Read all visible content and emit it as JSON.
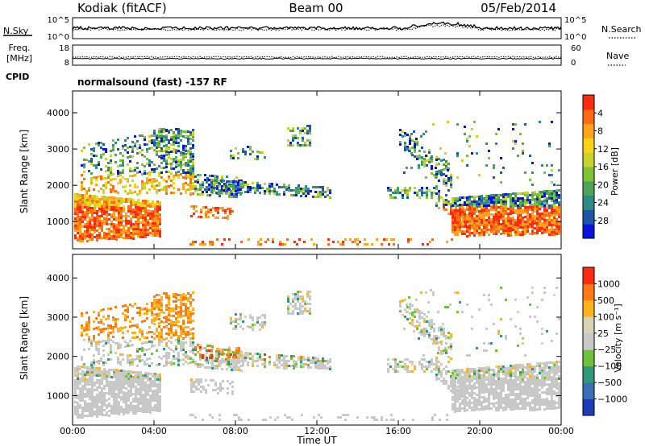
{
  "header": {
    "station": "Kodiak (fitACF)",
    "beam": "Beam 00",
    "date": "05/Feb/2014"
  },
  "noise_panel": {
    "left_label": "N.Sky",
    "right_label": "N.Search",
    "left_ticks": [
      "10^5",
      "10^0"
    ],
    "right_ticks": [
      "10^5",
      "10^0"
    ]
  },
  "freq_panel": {
    "left_label_1": "Freq.",
    "left_label_2": "[MHz]",
    "left_ticks": [
      "18",
      "8"
    ],
    "right_label": "Nave",
    "right_ticks": [
      "60",
      "0"
    ]
  },
  "cpid": {
    "label": "CPID",
    "value": "normalsound (fast) -157 RF"
  },
  "chart_data": [
    {
      "type": "heatmap",
      "name": "power",
      "xlabel": "Time UT",
      "ylabel": "Slant Range [km]",
      "ylim": [
        250,
        4600
      ],
      "y_ticks": [
        "1000",
        "2000",
        "3000",
        "4000"
      ],
      "x_ticks": [
        "00:00",
        "04:00",
        "08:00",
        "12:00",
        "16:00",
        "20:00",
        "00:00"
      ],
      "colorbar_label": "Power [dB]",
      "colorbar_ticks": [
        "4",
        "8",
        "12",
        "16",
        "20",
        "24",
        "28"
      ],
      "colorscale": [
        "#0a12e0",
        "#1f55a8",
        "#2f8a8a",
        "#4ea35a",
        "#7fc23a",
        "#c9d42b",
        "#ffd21a",
        "#ffa31a",
        "#ff6a14",
        "#ff2a0f"
      ]
    },
    {
      "type": "heatmap",
      "name": "velocity",
      "xlabel": "Time UT",
      "ylabel": "Slant Range [km]",
      "ylim": [
        250,
        4600
      ],
      "y_ticks": [
        "1000",
        "2000",
        "3000",
        "4000"
      ],
      "x_ticks": [
        "00:00",
        "04:00",
        "08:00",
        "12:00",
        "16:00",
        "20:00",
        "00:00"
      ],
      "colorbar_label": "Velocity [m s⁻¹]",
      "colorbar_ticks": [
        "1000",
        "500",
        "100",
        "25",
        "−25",
        "−100",
        "−500",
        "−1000"
      ],
      "colorscale": [
        "#1f3cb8",
        "#3a6fb3",
        "#2f9a7a",
        "#6fc03a",
        "#c8c8c8",
        "#d8d2b0",
        "#ffb21a",
        "#ff7a14",
        "#ff2a0f"
      ]
    }
  ],
  "x_axis": {
    "label": "Time UT"
  }
}
